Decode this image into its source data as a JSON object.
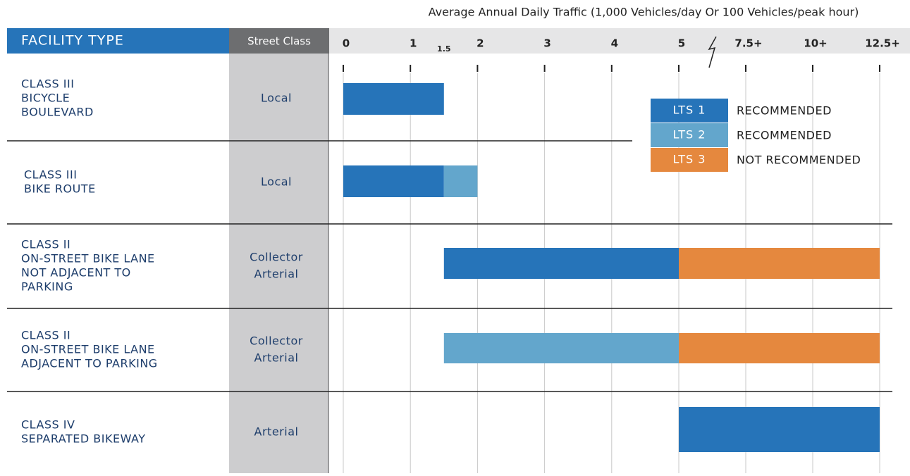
{
  "chart_data": {
    "type": "range-bar",
    "title": "Average Annual Daily Traffic (1,000 Vehicles/day Or 100 Vehicles/peak hour)",
    "facility_header": "FACILITY TYPE",
    "class_header": "Street Class",
    "xlim": [
      0,
      12.5
    ],
    "axis_break": 5,
    "xticks": [
      0,
      1,
      1.5,
      2,
      3,
      4,
      5,
      {
        "value": 7.5,
        "label": "7.5+"
      },
      {
        "value": 10,
        "label": "10+"
      },
      {
        "value": 12.5,
        "label": "12.5+"
      }
    ],
    "legend": [
      {
        "name": "LTS 1",
        "color": "#2674b9",
        "text": "RECOMMENDED"
      },
      {
        "name": "LTS 2",
        "color": "#63a6cc",
        "text": "RECOMMENDED"
      },
      {
        "name": "LTS 3",
        "color": "#e5883e",
        "text": "NOT RECOMMENDED"
      }
    ],
    "rows": [
      {
        "facility": [
          "CLASS III",
          "BICYCLE",
          "BOULEVARD"
        ],
        "street_class": [
          "Local"
        ],
        "segments": [
          {
            "level": 0,
            "start": 0,
            "end": 1.5
          }
        ]
      },
      {
        "facility": [
          "CLASS III",
          "BIKE ROUTE"
        ],
        "street_class": [
          "Local"
        ],
        "segments": [
          {
            "level": 0,
            "start": 0,
            "end": 1.5
          },
          {
            "level": 1,
            "start": 1.5,
            "end": 2
          }
        ]
      },
      {
        "facility": [
          "CLASS II",
          "ON-STREET BIKE LANE",
          "NOT ADJACENT TO",
          "PARKING"
        ],
        "street_class": [
          "Collector",
          "Arterial"
        ],
        "segments": [
          {
            "level": 0,
            "start": 1.5,
            "end": 5
          },
          {
            "level": 2,
            "start": 5,
            "end": 12.5
          }
        ]
      },
      {
        "facility": [
          "CLASS II",
          "ON-STREET BIKE LANE",
          "ADJACENT TO PARKING"
        ],
        "street_class": [
          "Collector",
          "Arterial"
        ],
        "segments": [
          {
            "level": 1,
            "start": 1.5,
            "end": 5
          },
          {
            "level": 2,
            "start": 5,
            "end": 12.5
          }
        ]
      },
      {
        "facility": [
          "CLASS IV",
          "SEPARATED BIKEWAY"
        ],
        "street_class": [
          "Arterial"
        ],
        "segments": [
          {
            "level": 0,
            "start": 5,
            "end": 12.5
          }
        ]
      }
    ]
  }
}
